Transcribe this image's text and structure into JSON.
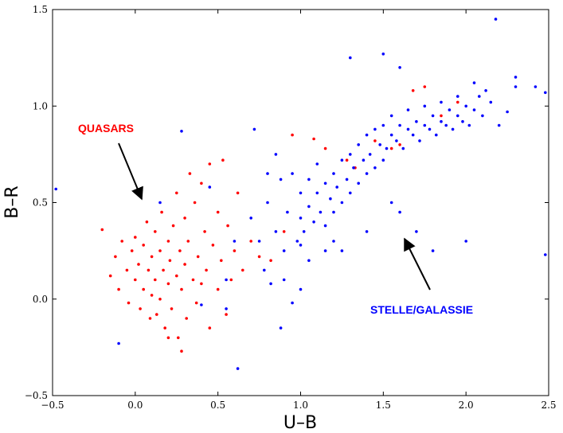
{
  "chart_data": {
    "type": "scatter",
    "title": "",
    "xlabel": "U–B",
    "ylabel": "B–R",
    "xlim": [
      -0.5,
      2.5
    ],
    "ylim": [
      -0.5,
      1.5
    ],
    "xticks": [
      -0.5,
      0.0,
      0.5,
      1.0,
      1.5,
      2.0,
      2.5
    ],
    "yticks": [
      -0.5,
      0.0,
      0.5,
      1.0,
      1.5
    ],
    "xtick_labels": [
      "−0.5",
      "0.0",
      "0.5",
      "1.0",
      "1.5",
      "2.0",
      "2.5"
    ],
    "ytick_labels": [
      "−0.5",
      "0.0",
      "0.5",
      "1.0",
      "1.5"
    ],
    "grid": false,
    "series": [
      {
        "color": "#ff0000",
        "points": [
          [
            -0.2,
            0.36
          ],
          [
            -0.15,
            0.12
          ],
          [
            -0.12,
            0.22
          ],
          [
            -0.1,
            0.05
          ],
          [
            -0.08,
            0.3
          ],
          [
            -0.05,
            0.15
          ],
          [
            -0.04,
            -0.02
          ],
          [
            -0.02,
            0.25
          ],
          [
            0.0,
            0.1
          ],
          [
            0.0,
            0.32
          ],
          [
            0.02,
            0.18
          ],
          [
            0.03,
            -0.05
          ],
          [
            0.05,
            0.28
          ],
          [
            0.05,
            0.05
          ],
          [
            0.07,
            0.4
          ],
          [
            0.08,
            0.15
          ],
          [
            0.09,
            -0.1
          ],
          [
            0.1,
            0.22
          ],
          [
            0.1,
            0.02
          ],
          [
            0.12,
            0.35
          ],
          [
            0.12,
            0.1
          ],
          [
            0.13,
            -0.08
          ],
          [
            0.15,
            0.25
          ],
          [
            0.15,
            0.0
          ],
          [
            0.16,
            0.45
          ],
          [
            0.17,
            0.15
          ],
          [
            0.18,
            -0.15
          ],
          [
            0.2,
            0.3
          ],
          [
            0.2,
            0.08
          ],
          [
            0.21,
            0.2
          ],
          [
            0.22,
            -0.05
          ],
          [
            0.23,
            0.38
          ],
          [
            0.25,
            0.12
          ],
          [
            0.25,
            0.55
          ],
          [
            0.26,
            -0.2
          ],
          [
            0.27,
            0.25
          ],
          [
            0.28,
            0.05
          ],
          [
            0.3,
            0.42
          ],
          [
            0.3,
            0.18
          ],
          [
            0.31,
            -0.1
          ],
          [
            0.32,
            0.3
          ],
          [
            0.33,
            0.65
          ],
          [
            0.35,
            0.1
          ],
          [
            0.36,
            0.5
          ],
          [
            0.37,
            -0.02
          ],
          [
            0.38,
            0.22
          ],
          [
            0.4,
            0.6
          ],
          [
            0.4,
            0.08
          ],
          [
            0.42,
            0.35
          ],
          [
            0.43,
            0.15
          ],
          [
            0.45,
            0.7
          ],
          [
            0.45,
            -0.15
          ],
          [
            0.47,
            0.28
          ],
          [
            0.5,
            0.45
          ],
          [
            0.5,
            0.05
          ],
          [
            0.52,
            0.2
          ],
          [
            0.53,
            0.72
          ],
          [
            0.55,
            -0.08
          ],
          [
            0.56,
            0.38
          ],
          [
            0.58,
            0.1
          ],
          [
            0.6,
            0.25
          ],
          [
            0.62,
            0.55
          ],
          [
            0.65,
            0.15
          ],
          [
            0.7,
            0.3
          ],
          [
            0.28,
            -0.27
          ],
          [
            0.2,
            -0.2
          ],
          [
            0.75,
            0.22
          ],
          [
            0.82,
            0.2
          ],
          [
            0.9,
            0.35
          ],
          [
            0.95,
            0.85
          ],
          [
            1.08,
            0.83
          ],
          [
            1.15,
            0.78
          ],
          [
            1.28,
            0.72
          ],
          [
            1.33,
            0.68
          ],
          [
            1.45,
            0.82
          ],
          [
            1.55,
            0.78
          ],
          [
            1.6,
            0.8
          ],
          [
            1.68,
            1.08
          ],
          [
            1.75,
            1.1
          ],
          [
            1.85,
            0.95
          ],
          [
            1.95,
            1.02
          ]
        ]
      },
      {
        "color": "#0000ff",
        "points": [
          [
            -0.48,
            0.57
          ],
          [
            -0.1,
            -0.23
          ],
          [
            0.15,
            0.5
          ],
          [
            0.28,
            0.87
          ],
          [
            0.45,
            0.58
          ],
          [
            0.55,
            0.1
          ],
          [
            0.6,
            0.3
          ],
          [
            0.62,
            -0.36
          ],
          [
            0.7,
            0.42
          ],
          [
            0.72,
            0.88
          ],
          [
            0.75,
            0.3
          ],
          [
            0.78,
            0.15
          ],
          [
            0.8,
            0.5
          ],
          [
            0.82,
            0.08
          ],
          [
            0.85,
            0.35
          ],
          [
            0.88,
            0.62
          ],
          [
            0.9,
            0.25
          ],
          [
            0.92,
            0.45
          ],
          [
            0.95,
            0.65
          ],
          [
            0.98,
            0.3
          ],
          [
            1.0,
            0.42
          ],
          [
            1.0,
            0.55
          ],
          [
            1.02,
            0.35
          ],
          [
            1.05,
            0.48
          ],
          [
            1.05,
            0.62
          ],
          [
            1.08,
            0.4
          ],
          [
            1.1,
            0.55
          ],
          [
            1.1,
            0.7
          ],
          [
            1.12,
            0.45
          ],
          [
            1.15,
            0.6
          ],
          [
            1.15,
            0.38
          ],
          [
            1.18,
            0.52
          ],
          [
            1.2,
            0.65
          ],
          [
            1.2,
            0.45
          ],
          [
            1.22,
            0.58
          ],
          [
            1.25,
            0.72
          ],
          [
            1.25,
            0.5
          ],
          [
            1.28,
            0.62
          ],
          [
            1.3,
            0.55
          ],
          [
            1.3,
            0.75
          ],
          [
            1.32,
            0.68
          ],
          [
            1.35,
            0.6
          ],
          [
            1.35,
            0.8
          ],
          [
            1.38,
            0.72
          ],
          [
            1.4,
            0.65
          ],
          [
            1.4,
            0.85
          ],
          [
            1.42,
            0.75
          ],
          [
            1.45,
            0.68
          ],
          [
            1.45,
            0.88
          ],
          [
            1.48,
            0.8
          ],
          [
            1.5,
            0.72
          ],
          [
            1.5,
            0.9
          ],
          [
            1.52,
            0.78
          ],
          [
            1.55,
            0.85
          ],
          [
            1.55,
            0.95
          ],
          [
            1.58,
            0.82
          ],
          [
            1.6,
            0.9
          ],
          [
            1.62,
            0.78
          ],
          [
            1.65,
            0.88
          ],
          [
            1.65,
            0.98
          ],
          [
            1.68,
            0.85
          ],
          [
            1.7,
            0.92
          ],
          [
            1.72,
            0.82
          ],
          [
            1.75,
            0.9
          ],
          [
            1.75,
            1.0
          ],
          [
            1.78,
            0.88
          ],
          [
            1.8,
            0.95
          ],
          [
            1.82,
            0.85
          ],
          [
            1.85,
            0.92
          ],
          [
            1.85,
            1.02
          ],
          [
            1.88,
            0.9
          ],
          [
            1.9,
            0.98
          ],
          [
            1.92,
            0.88
          ],
          [
            1.95,
            0.95
          ],
          [
            1.95,
            1.05
          ],
          [
            1.98,
            0.92
          ],
          [
            2.0,
            1.0
          ],
          [
            2.02,
            0.9
          ],
          [
            2.05,
            0.98
          ],
          [
            2.08,
            1.05
          ],
          [
            2.1,
            0.95
          ],
          [
            2.15,
            1.02
          ],
          [
            2.2,
            0.9
          ],
          [
            2.25,
            0.97
          ],
          [
            2.3,
            1.1
          ],
          [
            2.18,
            1.45
          ],
          [
            2.3,
            1.15
          ],
          [
            2.42,
            1.1
          ],
          [
            2.48,
            1.07
          ],
          [
            2.48,
            0.23
          ],
          [
            1.7,
            0.35
          ],
          [
            1.8,
            0.25
          ],
          [
            2.0,
            0.3
          ],
          [
            1.3,
            1.25
          ],
          [
            1.5,
            1.27
          ],
          [
            1.6,
            1.2
          ],
          [
            1.0,
            0.05
          ],
          [
            0.95,
            -0.02
          ],
          [
            1.2,
            0.3
          ],
          [
            1.25,
            0.25
          ],
          [
            1.4,
            0.35
          ],
          [
            1.6,
            0.45
          ],
          [
            1.55,
            0.5
          ],
          [
            1.0,
            0.28
          ],
          [
            0.9,
            0.1
          ],
          [
            0.88,
            -0.15
          ],
          [
            0.4,
            -0.03
          ],
          [
            0.55,
            -0.05
          ],
          [
            1.05,
            0.2
          ],
          [
            1.15,
            0.25
          ],
          [
            0.8,
            0.65
          ],
          [
            0.85,
            0.75
          ],
          [
            2.05,
            1.12
          ],
          [
            2.12,
            1.08
          ]
        ]
      }
    ],
    "annotations": [
      {
        "text": "QUASARS",
        "color": "#ff0000"
      },
      {
        "text": "STELLE/GALASSIE",
        "color": "#0000ff"
      }
    ]
  }
}
